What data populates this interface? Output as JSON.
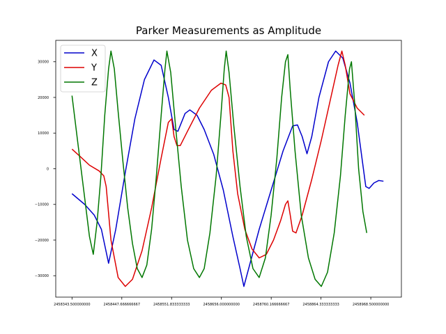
{
  "chart_data": {
    "type": "line",
    "title": "Parker Measurements as Amplitude",
    "xlabel": "",
    "ylabel": "",
    "xlim": [
      2458309.5,
      2459032.5
    ],
    "ylim": [
      -36000,
      36000
    ],
    "x_ticks": [
      2458343.5,
      2458447.666666667,
      2458551.833333333,
      2458656.0,
      2458760.166666667,
      2458864.333333333,
      2458968.5,
      2459072.666666667
    ],
    "x_tick_labels": [
      "2458343.500000000",
      "2458447.666666667",
      "2458551.833333333",
      "2458656.000000000",
      "2458760.166666667",
      "2458864.333333333",
      "2458968.500000000",
      ""
    ],
    "y_ticks": [
      -30000,
      -20000,
      -10000,
      0,
      10000,
      20000,
      30000
    ],
    "y_tick_labels": [
      "−30000",
      "−20000",
      "−10000",
      "0",
      "10000",
      "20000",
      "30000"
    ],
    "grid": false,
    "legend": "top-left",
    "series": [
      {
        "name": "X",
        "color": "#0000cc",
        "points": [
          [
            2458343.5,
            -7000
          ],
          [
            2458370,
            -10000
          ],
          [
            2458390,
            -13000
          ],
          [
            2458405,
            -17000
          ],
          [
            2458420,
            -26500
          ],
          [
            2458435,
            -17000
          ],
          [
            2458455,
            -1000
          ],
          [
            2458475,
            14000
          ],
          [
            2458495,
            25000
          ],
          [
            2458515,
            30500
          ],
          [
            2458530,
            29000
          ],
          [
            2458545,
            20000
          ],
          [
            2458557,
            11000
          ],
          [
            2458565,
            10500
          ],
          [
            2458580,
            15500
          ],
          [
            2458590,
            16500
          ],
          [
            2458605,
            15000
          ],
          [
            2458620,
            11000
          ],
          [
            2458640,
            4000
          ],
          [
            2458660,
            -6000
          ],
          [
            2458680,
            -19000
          ],
          [
            2458695,
            -28000
          ],
          [
            2458703,
            -33000
          ],
          [
            2458715,
            -27000
          ],
          [
            2458735,
            -17000
          ],
          [
            2458760,
            -6000
          ],
          [
            2458785,
            5000
          ],
          [
            2458805,
            12000
          ],
          [
            2458815,
            12300
          ],
          [
            2458825,
            9000
          ],
          [
            2458835,
            4200
          ],
          [
            2458845,
            9000
          ],
          [
            2458860,
            20000
          ],
          [
            2458880,
            30000
          ],
          [
            2458895,
            33000
          ],
          [
            2458910,
            31000
          ],
          [
            2458925,
            24000
          ],
          [
            2458940,
            13000
          ],
          [
            2458950,
            3000
          ],
          [
            2458958,
            -5000
          ],
          [
            2458965,
            -5500
          ],
          [
            2458975,
            -4000
          ],
          [
            2458985,
            -3300
          ],
          [
            2458995,
            -3500
          ]
        ]
      },
      {
        "name": "Y",
        "color": "#dd0000",
        "points": [
          [
            2458343.5,
            5500
          ],
          [
            2458360,
            3500
          ],
          [
            2458380,
            1000
          ],
          [
            2458400,
            -600
          ],
          [
            2458410,
            -2000
          ],
          [
            2458415,
            -5000
          ],
          [
            2458425,
            -20000
          ],
          [
            2458440,
            -30500
          ],
          [
            2458455,
            -33000
          ],
          [
            2458470,
            -31000
          ],
          [
            2458490,
            -23000
          ],
          [
            2458510,
            -11000
          ],
          [
            2458530,
            3000
          ],
          [
            2458545,
            13000
          ],
          [
            2458552,
            14000
          ],
          [
            2458557,
            9000
          ],
          [
            2458563,
            6500
          ],
          [
            2458570,
            6500
          ],
          [
            2458585,
            10500
          ],
          [
            2458610,
            17000
          ],
          [
            2458635,
            22000
          ],
          [
            2458655,
            24000
          ],
          [
            2458665,
            23500
          ],
          [
            2458672,
            20000
          ],
          [
            2458680,
            5000
          ],
          [
            2458690,
            -7000
          ],
          [
            2458705,
            -17000
          ],
          [
            2458720,
            -22500
          ],
          [
            2458735,
            -25000
          ],
          [
            2458750,
            -24000
          ],
          [
            2458765,
            -20000
          ],
          [
            2458780,
            -14500
          ],
          [
            2458790,
            -10000
          ],
          [
            2458795,
            -9000
          ],
          [
            2458800,
            -13000
          ],
          [
            2458805,
            -17500
          ],
          [
            2458812,
            -18000
          ],
          [
            2458825,
            -13000
          ],
          [
            2458845,
            -3000
          ],
          [
            2458865,
            8000
          ],
          [
            2458885,
            20000
          ],
          [
            2458900,
            29000
          ],
          [
            2458908,
            33000
          ],
          [
            2458915,
            29000
          ],
          [
            2458925,
            21000
          ],
          [
            2458940,
            17000
          ],
          [
            2458955,
            15000
          ]
        ]
      },
      {
        "name": "Z",
        "color": "#007700",
        "points": [
          [
            2458343.5,
            20500
          ],
          [
            2458355,
            8000
          ],
          [
            2458368,
            -6000
          ],
          [
            2458380,
            -19000
          ],
          [
            2458388,
            -24000
          ],
          [
            2458396,
            -15000
          ],
          [
            2458404,
            -2000
          ],
          [
            2458412,
            15000
          ],
          [
            2458420,
            28000
          ],
          [
            2458425,
            33000
          ],
          [
            2458432,
            28000
          ],
          [
            2458440,
            16000
          ],
          [
            2458450,
            2000
          ],
          [
            2458460,
            -11000
          ],
          [
            2458470,
            -21000
          ],
          [
            2458480,
            -28000
          ],
          [
            2458490,
            -30500
          ],
          [
            2458500,
            -27000
          ],
          [
            2458510,
            -17000
          ],
          [
            2458520,
            -2000
          ],
          [
            2458530,
            15000
          ],
          [
            2458538,
            28000
          ],
          [
            2458542,
            33000
          ],
          [
            2458550,
            27000
          ],
          [
            2458560,
            12000
          ],
          [
            2458572,
            -5000
          ],
          [
            2458585,
            -20000
          ],
          [
            2458598,
            -28000
          ],
          [
            2458610,
            -30500
          ],
          [
            2458620,
            -28000
          ],
          [
            2458632,
            -18000
          ],
          [
            2458645,
            -2000
          ],
          [
            2458655,
            15000
          ],
          [
            2458662,
            28000
          ],
          [
            2458666,
            33000
          ],
          [
            2458672,
            27000
          ],
          [
            2458682,
            12000
          ],
          [
            2458695,
            -5000
          ],
          [
            2458708,
            -19000
          ],
          [
            2458722,
            -28000
          ],
          [
            2458735,
            -30500
          ],
          [
            2458748,
            -25000
          ],
          [
            2458760,
            -13000
          ],
          [
            2458772,
            3000
          ],
          [
            2458782,
            20000
          ],
          [
            2458790,
            30000
          ],
          [
            2458795,
            32000
          ],
          [
            2458800,
            22000
          ],
          [
            2458810,
            5000
          ],
          [
            2458823,
            -13000
          ],
          [
            2458838,
            -25000
          ],
          [
            2458852,
            -31000
          ],
          [
            2458865,
            -33000
          ],
          [
            2458878,
            -29000
          ],
          [
            2458892,
            -18000
          ],
          [
            2458905,
            -2000
          ],
          [
            2458915,
            15000
          ],
          [
            2458924,
            28000
          ],
          [
            2458928,
            30000
          ],
          [
            2458935,
            18000
          ],
          [
            2458943,
            0
          ],
          [
            2458952,
            -12000
          ],
          [
            2458960,
            -18000
          ]
        ]
      }
    ]
  }
}
